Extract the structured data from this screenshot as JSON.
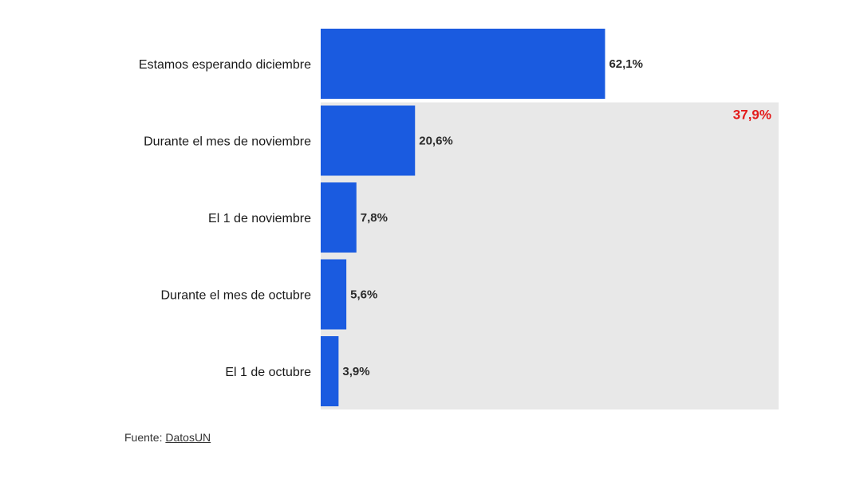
{
  "chart_data": {
    "type": "bar",
    "orientation": "horizontal",
    "categories": [
      "Estamos esperando diciembre",
      "Durante el mes de noviembre",
      "El 1 de noviembre",
      "Durante el mes de octubre",
      "El 1 de octubre"
    ],
    "values": [
      62.1,
      20.6,
      7.8,
      5.6,
      3.9
    ],
    "value_labels": [
      "62,1%",
      "20,6%",
      "7,8%",
      "5,6%",
      "3,9%"
    ],
    "xlim": [
      0,
      100
    ],
    "highlight": {
      "label": "37,9%",
      "value": 37.9,
      "categories_covered": [
        "Durante el mes de noviembre",
        "El 1 de noviembre",
        "Durante el mes de octubre",
        "El 1 de octubre"
      ]
    },
    "grid": false,
    "legend": "none"
  },
  "colors": {
    "bar": "#1a5be0",
    "highlight_bg": "#e8e8e8",
    "highlight_text": "#e31b1b"
  },
  "source": {
    "prefix": "Fuente: ",
    "link_text": "DatosUN"
  }
}
